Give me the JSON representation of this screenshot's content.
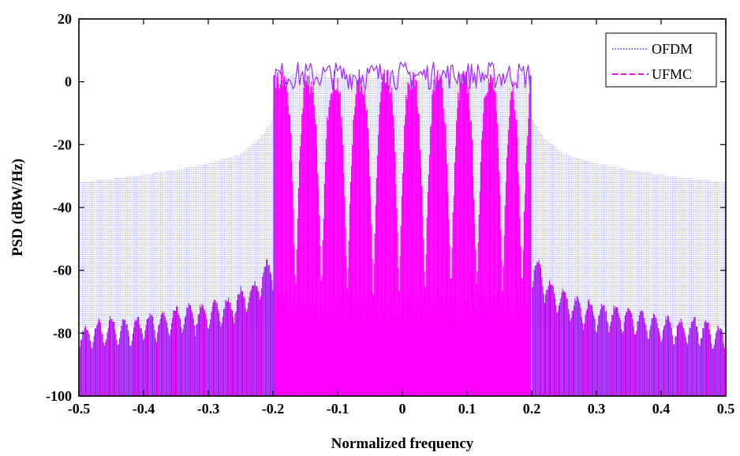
{
  "chart_data": {
    "type": "area",
    "title": "",
    "xlabel": "Normalized frequency",
    "ylabel": "PSD (dBW/Hz)",
    "xlim": [
      -0.5,
      0.5
    ],
    "ylim": [
      -100,
      20
    ],
    "x_ticks": [
      "-0.5",
      "-0.4",
      "-0.3",
      "-0.2",
      "-0.1",
      "0",
      "0.1",
      "0.2",
      "0.3",
      "0.4",
      "0.5"
    ],
    "y_ticks": [
      "20",
      "0",
      "-20",
      "-40",
      "-60",
      "-80",
      "-100"
    ],
    "grid": false,
    "legend_position": "top-right",
    "series": [
      {
        "name": "OFDM",
        "color": "#6b6bf5",
        "line_style": "dotted",
        "x": [
          -0.5,
          -0.45,
          -0.4,
          -0.35,
          -0.3,
          -0.25,
          -0.22,
          -0.2,
          -0.198,
          0.198,
          0.2,
          0.22,
          0.25,
          0.3,
          0.35,
          0.4,
          0.45,
          0.5
        ],
        "y_upper": [
          -32,
          -31,
          -29.5,
          -28,
          -26,
          -23,
          -18,
          -12,
          2,
          2,
          -12,
          -18,
          -23,
          -26,
          -28,
          -29.5,
          -31,
          -32
        ],
        "y_floor": [
          -78,
          -78,
          -78,
          -78,
          -78,
          -78,
          -78,
          -78,
          -78,
          -78,
          -78,
          -78,
          -78,
          -78,
          -78,
          -78,
          -78,
          -78
        ]
      },
      {
        "name": "UFMC",
        "color": "#ff00ff",
        "line_style": "dashed",
        "passband": [
          -0.198,
          0.198
        ],
        "passband_top_db": 2,
        "lobe_dips_x": [
          -0.165,
          -0.125,
          -0.085,
          -0.045,
          -0.005,
          0.035,
          0.075,
          0.115,
          0.155,
          0.185
        ],
        "lobe_dip_db": -72,
        "sidelobe_peaks_x": [
          -0.49,
          -0.47,
          -0.45,
          -0.43,
          -0.41,
          -0.39,
          -0.37,
          -0.35,
          -0.33,
          -0.31,
          -0.29,
          -0.27,
          -0.25,
          -0.23,
          -0.21,
          0.21,
          0.23,
          0.25,
          0.27,
          0.29,
          0.31,
          0.33,
          0.35,
          0.37,
          0.39,
          0.41,
          0.43,
          0.45,
          0.47,
          0.49
        ],
        "sidelobe_peaks_db": [
          -78,
          -76,
          -75,
          -76,
          -75,
          -74,
          -73,
          -72,
          -71,
          -71,
          -70,
          -69,
          -66,
          -64,
          -57,
          -57,
          -64,
          -66,
          -69,
          -70,
          -71,
          -71,
          -72,
          -73,
          -74,
          -75,
          -76,
          -75,
          -76,
          -78
        ]
      }
    ]
  }
}
